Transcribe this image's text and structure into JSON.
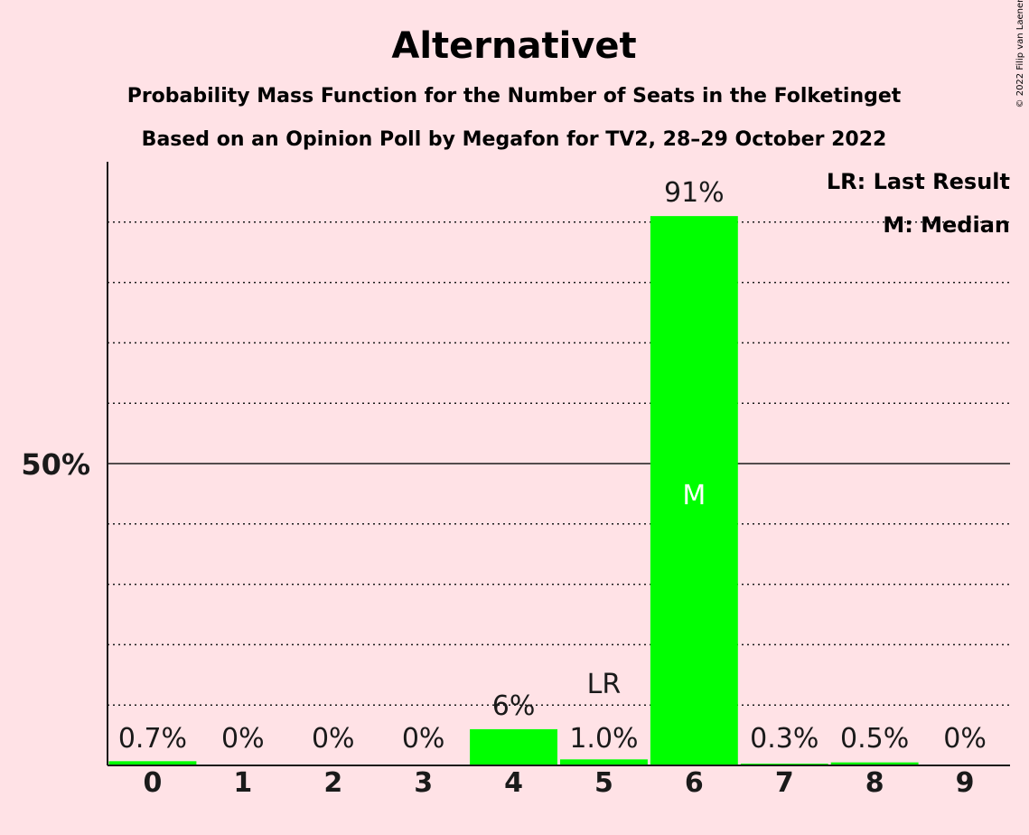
{
  "chart_data": {
    "type": "bar",
    "title": "Alternativet",
    "subtitle_1": "Probability Mass Function for the Number of Seats in the Folketinget",
    "subtitle_2": "Based on an Opinion Poll by Megafon for TV2, 28–29 October 2022",
    "copyright": "© 2022 Filip van Laenen",
    "categories": [
      "0",
      "1",
      "2",
      "3",
      "4",
      "5",
      "6",
      "7",
      "8",
      "9"
    ],
    "values": [
      0.7,
      0,
      0,
      0,
      6,
      1.0,
      91,
      0.3,
      0.5,
      0
    ],
    "value_labels": [
      "0.7%",
      "0%",
      "0%",
      "0%",
      "6%",
      "1.0%",
      "91%",
      "0.3%",
      "0.5%",
      "0%"
    ],
    "ylim": [
      0,
      100
    ],
    "y_ticks": [
      {
        "value": 50,
        "label": "50%"
      }
    ],
    "gridlines_dotted": [
      10,
      20,
      30,
      40,
      60,
      70,
      80,
      90
    ],
    "last_result": {
      "category": "5",
      "label": "LR"
    },
    "median": {
      "category": "6",
      "label": "M"
    },
    "legend": {
      "position": "top-right",
      "entries": [
        "LR: Last Result",
        "M: Median"
      ]
    },
    "colors": {
      "bar": "#00FF00",
      "background": "#FFE2E6",
      "axis": "#1a1a1a",
      "median_label": "#FFFFFF"
    }
  }
}
